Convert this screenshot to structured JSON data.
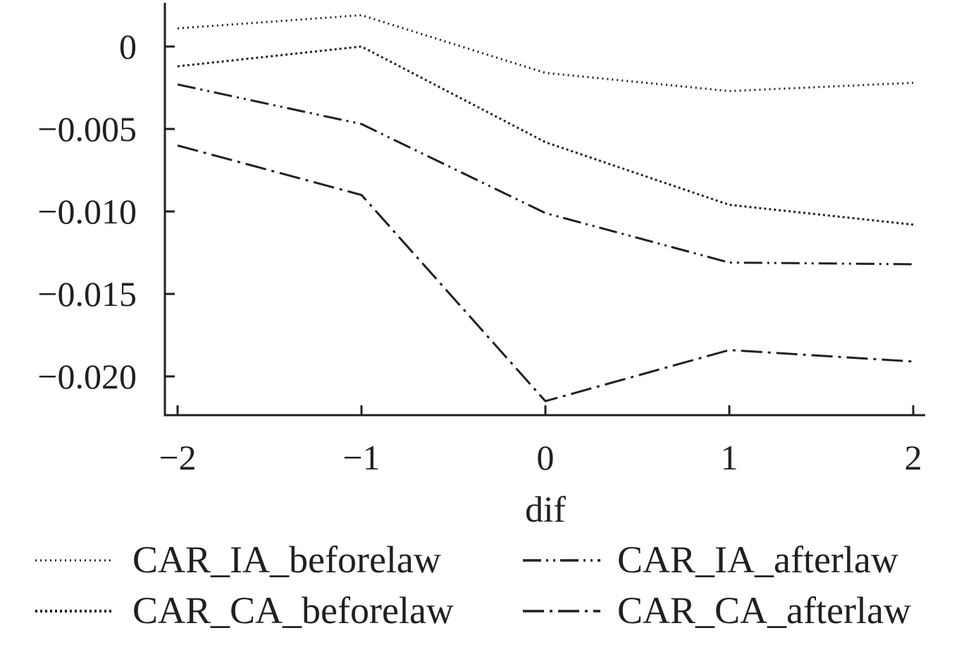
{
  "chart_data": {
    "type": "line",
    "title": "",
    "xlabel": "dif",
    "ylabel": "",
    "x": [
      -2,
      -1,
      0,
      1,
      2
    ],
    "x_tick_labels": [
      "−2",
      "−1",
      "0",
      "1",
      "2"
    ],
    "y_ticks": [
      0,
      -0.005,
      -0.01,
      -0.015,
      -0.02
    ],
    "y_tick_labels": [
      "0",
      "−0.005",
      "−0.010",
      "−0.015",
      "−0.020"
    ],
    "xlim": [
      -2.08,
      2.08
    ],
    "ylim": [
      -0.0223,
      0.0027
    ],
    "grid": false,
    "legend_position": "bottom",
    "series": [
      {
        "name": "CAR_IA_beforelaw",
        "values": [
          0.0011,
          0.0019,
          -0.0016,
          -0.0027,
          -0.0022
        ],
        "style": "dotted-fine",
        "color": "#231f20"
      },
      {
        "name": "CAR_IA_afterlaw",
        "values": [
          -0.0023,
          -0.0047,
          -0.0101,
          -0.0131,
          -0.0132
        ],
        "style": "long-dash-dot-dot",
        "color": "#231f20"
      },
      {
        "name": "CAR_CA_beforelaw",
        "values": [
          -0.0012,
          0.0,
          -0.0058,
          -0.0096,
          -0.0108
        ],
        "style": "dotted-dense",
        "color": "#231f20"
      },
      {
        "name": "CAR_CA_afterlaw",
        "values": [
          -0.006,
          -0.009,
          -0.0215,
          -0.0184,
          -0.0191
        ],
        "style": "long-dash-dot",
        "color": "#231f20"
      }
    ]
  }
}
